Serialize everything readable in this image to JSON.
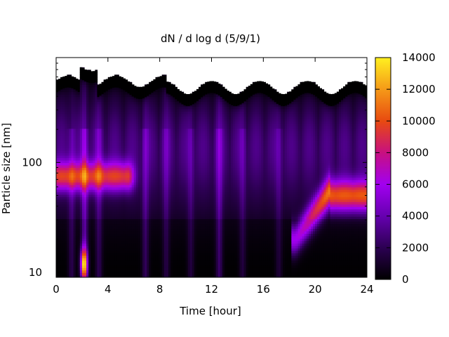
{
  "chart_data": {
    "type": "heatmap",
    "title": "dN / d log d (5/9/1)",
    "xlabel": "Time [hour]",
    "ylabel": "Particle size [nm]",
    "xlim": [
      0,
      24
    ],
    "ylim": [
      9,
      900
    ],
    "y_scale": "log",
    "x_ticks": [
      0,
      4,
      8,
      12,
      16,
      20,
      24
    ],
    "y_ticks": [
      10,
      100
    ],
    "colorbar": {
      "range": [
        0,
        14000
      ],
      "ticks": [
        0,
        2000,
        4000,
        6000,
        8000,
        10000,
        12000,
        14000
      ],
      "colormap": [
        "#000000",
        "#2c0052",
        "#6600b0",
        "#a200f0",
        "#c81080",
        "#e84a10",
        "#f59a18",
        "#fff020"
      ]
    },
    "features": [
      {
        "name": "accumulation-mode",
        "x_range": [
          0,
          5.5
        ],
        "size_nm": 75,
        "peak": 8500
      },
      {
        "name": "early-nucleation-burst",
        "x_range": [
          1.8,
          2.6
        ],
        "size_nm": 12,
        "peak": 11500
      },
      {
        "name": "evening-growth-event",
        "x_range": [
          18.5,
          24
        ],
        "size_start_nm": 20,
        "size_end_nm": 50,
        "peak": 9500
      },
      {
        "name": "upper-cutoff",
        "size_nm": 550
      }
    ],
    "grid": false,
    "legend": "colorbar-right"
  }
}
